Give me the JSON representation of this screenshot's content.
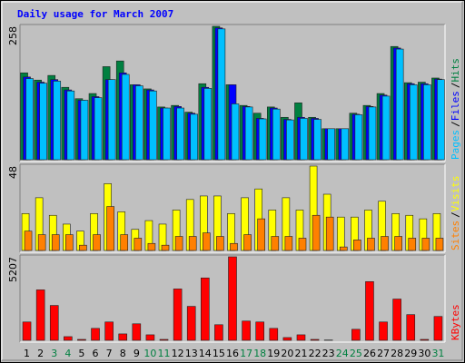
{
  "chart_data": [
    {
      "type": "bar",
      "title": "Daily usage for March 2007",
      "ylim": [
        0,
        258
      ],
      "yticks": [
        258
      ],
      "legend_separator": "/",
      "series": [
        {
          "name": "Hits",
          "color": "#008040",
          "values": [
            168,
            154,
            163,
            140,
            118,
            128,
            180,
            191,
            145,
            137,
            102,
            105,
            92,
            147,
            258,
            145,
            105,
            90,
            102,
            82,
            110,
            82,
            60,
            60,
            90,
            105,
            128,
            219,
            149,
            150,
            158
          ]
        },
        {
          "name": "Files",
          "color": "#0000ff",
          "values": [
            160,
            150,
            155,
            135,
            115,
            122,
            155,
            168,
            145,
            135,
            100,
            103,
            90,
            140,
            255,
            145,
            103,
            80,
            100,
            78,
            82,
            80,
            60,
            60,
            88,
            103,
            125,
            216,
            147,
            147,
            156
          ]
        },
        {
          "name": "Pages",
          "color": "#00c0ff",
          "values": [
            157,
            148,
            152,
            133,
            115,
            120,
            155,
            165,
            143,
            133,
            100,
            100,
            88,
            138,
            253,
            108,
            102,
            79,
            98,
            77,
            80,
            78,
            60,
            60,
            87,
            102,
            123,
            214,
            145,
            145,
            155
          ]
        }
      ]
    },
    {
      "type": "bar",
      "ylim": [
        0,
        48
      ],
      "yticks": [
        48
      ],
      "legend_separator": "/",
      "series": [
        {
          "name": "Visits",
          "color": "#ffff00",
          "values": [
            21,
            30,
            20,
            15,
            11,
            21,
            38,
            22,
            12,
            17,
            15,
            23,
            29,
            31,
            31,
            21,
            30,
            35,
            23,
            30,
            23,
            48,
            32,
            19,
            19,
            23,
            28,
            21,
            20,
            18,
            21
          ]
        },
        {
          "name": "Sites",
          "color": "#ff8000",
          "values": [
            11,
            9,
            9,
            9,
            3,
            9,
            25,
            9,
            7,
            4,
            3,
            8,
            8,
            10,
            8,
            4,
            9,
            18,
            8,
            8,
            7,
            20,
            19,
            2,
            6,
            7,
            8,
            8,
            7,
            7,
            7
          ]
        }
      ]
    },
    {
      "type": "bar",
      "ylim": [
        0,
        5207
      ],
      "yticks": [
        5207
      ],
      "categories": [
        "1",
        "2",
        "3",
        "4",
        "5",
        "6",
        "7",
        "8",
        "9",
        "10",
        "11",
        "12",
        "13",
        "14",
        "15",
        "16",
        "17",
        "18",
        "19",
        "20",
        "21",
        "22",
        "23",
        "24",
        "25",
        "26",
        "27",
        "28",
        "29",
        "30",
        "31"
      ],
      "category_colors": [
        "#000000",
        "#000000",
        "#008040",
        "#008040",
        "#000000",
        "#000000",
        "#000000",
        "#000000",
        "#000000",
        "#008040",
        "#008040",
        "#000000",
        "#000000",
        "#000000",
        "#000000",
        "#000000",
        "#008040",
        "#008040",
        "#000000",
        "#000000",
        "#000000",
        "#000000",
        "#000000",
        "#008040",
        "#008040",
        "#000000",
        "#000000",
        "#000000",
        "#000000",
        "#000000",
        "#008040"
      ],
      "series": [
        {
          "name": "KBytes",
          "color": "#ff0000",
          "values": [
            1144,
            3147,
            2174,
            229,
            57,
            744,
            1144,
            400,
            1030,
            343,
            57,
            3204,
            2117,
            3891,
            973,
            5207,
            1201,
            1144,
            744,
            172,
            343,
            57,
            20,
            0,
            687,
            3662,
            1144,
            2574,
            1602,
            57,
            1487
          ]
        }
      ]
    }
  ]
}
